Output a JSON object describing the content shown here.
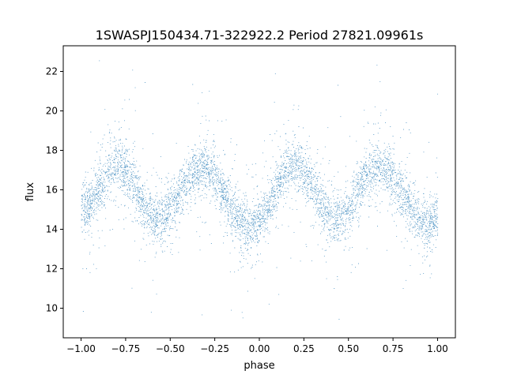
{
  "chart_data": {
    "type": "scatter",
    "title": "1SWASPJ150434.71-322922.2 Period 27821.09961s",
    "xlabel": "phase",
    "ylabel": "flux",
    "xlim": [
      -1.1,
      1.1
    ],
    "ylim": [
      8.5,
      23.3
    ],
    "xticks": [
      -1.0,
      -0.75,
      -0.5,
      -0.25,
      0.0,
      0.25,
      0.5,
      0.75,
      1.0
    ],
    "xtick_labels": [
      "−1.00",
      "−0.75",
      "−0.50",
      "−0.25",
      "0.00",
      "0.25",
      "0.50",
      "0.75",
      "1.00"
    ],
    "yticks": [
      10,
      12,
      14,
      16,
      18,
      20,
      22
    ],
    "ytick_labels": [
      "10",
      "12",
      "14",
      "16",
      "18",
      "20",
      "22"
    ],
    "grid": false,
    "legend": false,
    "point_color": "#1f77b4",
    "curve_x": [
      -1.0,
      -0.8,
      -0.57,
      -0.33,
      -0.05,
      0.2,
      0.43,
      0.67,
      0.95,
      1.0
    ],
    "curve_y": [
      15.0,
      17.2,
      14.5,
      17.1,
      14.1,
      17.2,
      14.5,
      17.1,
      14.3,
      14.8
    ],
    "band_spread": 0.6,
    "outlier_range": [
      9.2,
      22.6
    ]
  }
}
